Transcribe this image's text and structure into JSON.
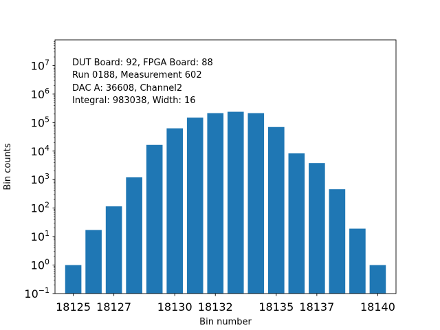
{
  "chart_data": {
    "type": "bar",
    "xlabel": "Bin number",
    "ylabel": "Bin counts",
    "yscale": "log",
    "ylim": [
      0.1,
      80000000
    ],
    "xlim": [
      18124.1,
      18140.9
    ],
    "grid": false,
    "bar_color": "#1f77b4",
    "x": [
      18125,
      18126,
      18127,
      18128,
      18129,
      18130,
      18131,
      18132,
      18133,
      18134,
      18135,
      18136,
      18137,
      18138,
      18139,
      18140
    ],
    "values": [
      1,
      17,
      115,
      1200,
      16500,
      63000,
      150000,
      215000,
      240000,
      215000,
      70000,
      8300,
      3800,
      460,
      19,
      1
    ],
    "x_ticks": [
      {
        "value": 18125,
        "label": "18125"
      },
      {
        "value": 18127,
        "label": "18127"
      },
      {
        "value": 18130,
        "label": "18130"
      },
      {
        "value": 18132,
        "label": "18132"
      },
      {
        "value": 18135,
        "label": "18135"
      },
      {
        "value": 18137,
        "label": "18137"
      },
      {
        "value": 18140,
        "label": "18140"
      }
    ],
    "y_ticks": [
      {
        "exp": -1,
        "base": "10",
        "sup": "−1"
      },
      {
        "exp": 0,
        "base": "10",
        "sup": "0"
      },
      {
        "exp": 1,
        "base": "10",
        "sup": "1"
      },
      {
        "exp": 2,
        "base": "10",
        "sup": "2"
      },
      {
        "exp": 3,
        "base": "10",
        "sup": "3"
      },
      {
        "exp": 4,
        "base": "10",
        "sup": "4"
      },
      {
        "exp": 5,
        "base": "10",
        "sup": "5"
      },
      {
        "exp": 6,
        "base": "10",
        "sup": "6"
      },
      {
        "exp": 7,
        "base": "10",
        "sup": "7"
      }
    ],
    "annotations": [
      "DUT Board: 92, FPGA Board: 88",
      "Run 0188, Measurement 602",
      "DAC A: 36608, Channel2",
      "Integral: 983038, Width: 16"
    ]
  }
}
